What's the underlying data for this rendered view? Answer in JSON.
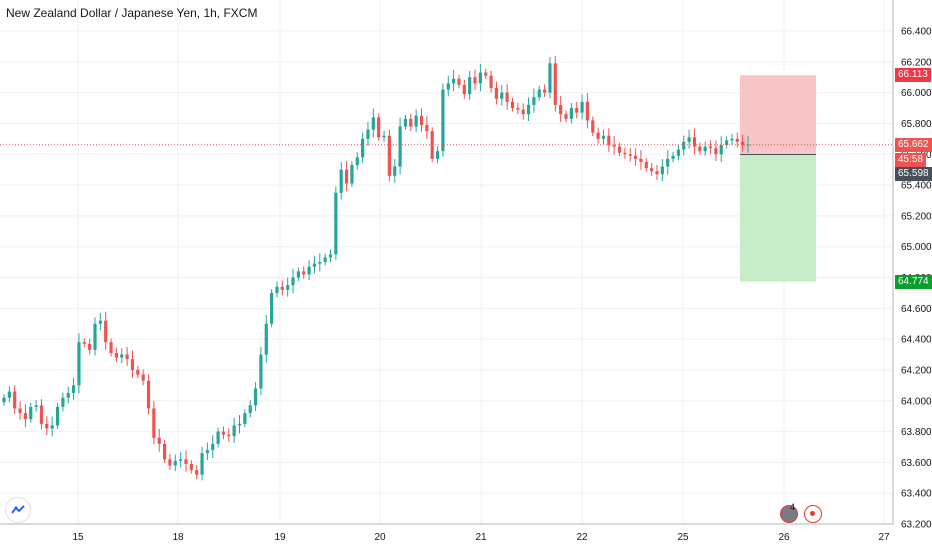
{
  "header": {
    "title": "New Zealand Dollar / Japanese Yen, 1h, FXCM"
  },
  "price_badges": {
    "stop_loss": "66.113",
    "current_price": "65.662",
    "countdown": "45:58",
    "entry": "65.598",
    "take_profit": "64.774"
  },
  "colors": {
    "up": "#26a69a",
    "down": "#ef5350",
    "stop_zone": "#f7c5c5",
    "target_zone": "#c8ebc8",
    "grid": "#eef0f3",
    "stop_badge": "#f23645",
    "current_badge": "#ef5350",
    "countdown_badge": "#ef5350",
    "entry_badge": "#4a4e59",
    "target_badge": "#0a9e2c"
  },
  "icons": {
    "logo": "tradingview-logo-icon",
    "events": "economic-events-icon",
    "alert": "alert-icon"
  },
  "events": {
    "count": "4"
  },
  "chart_data": {
    "type": "candlestick",
    "title": "New Zealand Dollar / Japanese Yen, 1h, FXCM",
    "y_ticks": [
      "63.200",
      "63.400",
      "63.600",
      "63.800",
      "64.000",
      "64.200",
      "64.400",
      "64.600",
      "64.800",
      "65.000",
      "65.200",
      "65.400",
      "65.600",
      "65.800",
      "66.000",
      "66.200",
      "66.400"
    ],
    "ylim": [
      63.2,
      66.5
    ],
    "x_ticks": [
      "15",
      "18",
      "19",
      "20",
      "21",
      "22",
      "25",
      "26",
      "27"
    ],
    "grid": true,
    "position_tool": {
      "entry": 65.598,
      "stop": 66.113,
      "target": 64.774,
      "current": 65.662
    },
    "closes": [
      64.02,
      64.06,
      63.95,
      63.92,
      63.88,
      63.96,
      63.97,
      63.85,
      63.82,
      63.84,
      63.96,
      64.02,
      64.05,
      64.1,
      64.38,
      64.37,
      64.33,
      64.5,
      64.52,
      64.38,
      64.31,
      64.28,
      64.3,
      64.27,
      64.2,
      64.17,
      64.13,
      63.95,
      63.76,
      63.72,
      63.62,
      63.58,
      63.61,
      63.62,
      63.59,
      63.55,
      63.52,
      63.66,
      63.68,
      63.72,
      63.8,
      63.78,
      63.77,
      63.84,
      63.85,
      63.92,
      63.97,
      64.08,
      64.3,
      64.5,
      64.7,
      64.74,
      64.72,
      64.75,
      64.8,
      64.84,
      64.82,
      64.87,
      64.89,
      64.9,
      64.93,
      64.95,
      65.35,
      65.5,
      65.41,
      65.53,
      65.58,
      65.7,
      65.76,
      65.84,
      65.71,
      65.72,
      65.46,
      65.52,
      65.78,
      65.83,
      65.78,
      65.85,
      65.79,
      65.75,
      65.57,
      65.62,
      66.02,
      66.06,
      66.09,
      66.05,
      65.99,
      66.1,
      66.06,
      66.13,
      66.11,
      66.03,
      65.96,
      66.0,
      65.94,
      65.9,
      65.89,
      65.86,
      65.92,
      65.97,
      66.02,
      66.0,
      66.19,
      65.92,
      65.86,
      65.83,
      65.9,
      65.87,
      65.94,
      65.82,
      65.74,
      65.7,
      65.72,
      65.66,
      65.65,
      65.61,
      65.6,
      65.59,
      65.57,
      65.55,
      65.51,
      65.49,
      65.47,
      65.52,
      65.57,
      65.59,
      65.63,
      65.68,
      65.71,
      65.65,
      65.62,
      65.65,
      65.64,
      65.6,
      65.66,
      65.69,
      65.7,
      65.68,
      65.66,
      65.662
    ]
  }
}
